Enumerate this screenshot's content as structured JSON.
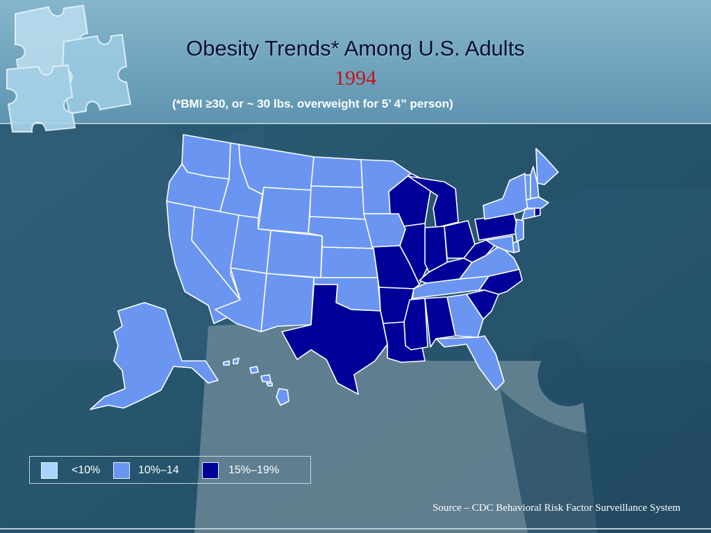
{
  "title": "Obesity Trends* Among U.S. Adults",
  "year": "1994",
  "subtitle": "(*BMI ≥30, or ~ 30 lbs. overweight for 5’ 4” person)",
  "legend": [
    {
      "label": "<10%",
      "color": "#a9d4ff",
      "category": "lt10"
    },
    {
      "label": "10%–14",
      "color": "#6a96f2",
      "category": "10to14"
    },
    {
      "label": "15%–19%",
      "color": "#000099",
      "category": "15to19"
    }
  ],
  "source": "Source – CDC Behavioral Risk Factor Surveillance System",
  "colors": {
    "background": "#2a5a73",
    "header": "#6fa3bd",
    "title": "#0a1030",
    "year": "#c0141a"
  },
  "states": [
    {
      "name": "Washington",
      "category": "10to14"
    },
    {
      "name": "Oregon",
      "category": "10to14"
    },
    {
      "name": "California",
      "category": "10to14"
    },
    {
      "name": "Idaho",
      "category": "10to14"
    },
    {
      "name": "Nevada",
      "category": "10to14"
    },
    {
      "name": "Montana",
      "category": "10to14"
    },
    {
      "name": "Wyoming",
      "category": "10to14"
    },
    {
      "name": "Utah",
      "category": "10to14"
    },
    {
      "name": "Arizona",
      "category": "10to14"
    },
    {
      "name": "Colorado",
      "category": "10to14"
    },
    {
      "name": "New Mexico",
      "category": "10to14"
    },
    {
      "name": "North Dakota",
      "category": "10to14"
    },
    {
      "name": "South Dakota",
      "category": "10to14"
    },
    {
      "name": "Nebraska",
      "category": "10to14"
    },
    {
      "name": "Kansas",
      "category": "10to14"
    },
    {
      "name": "Oklahoma",
      "category": "10to14"
    },
    {
      "name": "Texas",
      "category": "15to19"
    },
    {
      "name": "Minnesota",
      "category": "10to14"
    },
    {
      "name": "Iowa",
      "category": "10to14"
    },
    {
      "name": "Missouri",
      "category": "15to19"
    },
    {
      "name": "Arkansas",
      "category": "15to19"
    },
    {
      "name": "Louisiana",
      "category": "15to19"
    },
    {
      "name": "Wisconsin",
      "category": "15to19"
    },
    {
      "name": "Illinois",
      "category": "15to19"
    },
    {
      "name": "Michigan",
      "category": "15to19"
    },
    {
      "name": "Indiana",
      "category": "15to19"
    },
    {
      "name": "Ohio",
      "category": "15to19"
    },
    {
      "name": "Kentucky",
      "category": "15to19"
    },
    {
      "name": "Tennessee",
      "category": "10to14"
    },
    {
      "name": "Mississippi",
      "category": "15to19"
    },
    {
      "name": "Alabama",
      "category": "15to19"
    },
    {
      "name": "Georgia",
      "category": "10to14"
    },
    {
      "name": "Florida",
      "category": "10to14"
    },
    {
      "name": "South Carolina",
      "category": "15to19"
    },
    {
      "name": "North Carolina",
      "category": "15to19"
    },
    {
      "name": "Virginia",
      "category": "10to14"
    },
    {
      "name": "West Virginia",
      "category": "15to19"
    },
    {
      "name": "Pennsylvania",
      "category": "15to19"
    },
    {
      "name": "New York",
      "category": "10to14"
    },
    {
      "name": "Maine",
      "category": "10to14"
    },
    {
      "name": "New Hampshire",
      "category": "10to14"
    },
    {
      "name": "Vermont",
      "category": "10to14"
    },
    {
      "name": "Massachusetts",
      "category": "10to14"
    },
    {
      "name": "Connecticut",
      "category": "10to14"
    },
    {
      "name": "Rhode Island",
      "category": "15to19"
    },
    {
      "name": "New Jersey",
      "category": "10to14"
    },
    {
      "name": "Delaware",
      "category": "10to14"
    },
    {
      "name": "Maryland",
      "category": "10to14"
    },
    {
      "name": "Alaska",
      "category": "10to14"
    },
    {
      "name": "Hawaii",
      "category": "10to14"
    }
  ]
}
